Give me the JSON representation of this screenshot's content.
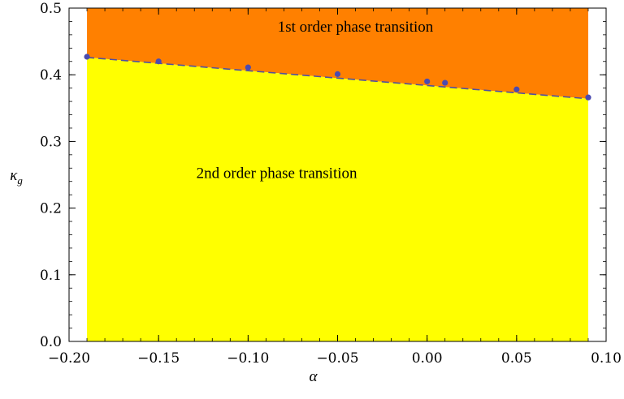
{
  "chart_data": {
    "type": "area",
    "title": "",
    "xlabel": "α",
    "ylabel": "κ",
    "ylabel_subscript": "g",
    "xlim": [
      -0.2,
      0.1
    ],
    "ylim": [
      0.0,
      0.5
    ],
    "x_ticks": [
      -0.2,
      -0.15,
      -0.1,
      -0.05,
      0.0,
      0.05,
      0.1
    ],
    "x_tick_labels": [
      "−0.20",
      "−0.15",
      "−0.10",
      "−0.05",
      "0.00",
      "0.05",
      "0.10"
    ],
    "y_ticks": [
      0.0,
      0.1,
      0.2,
      0.3,
      0.4,
      0.5
    ],
    "y_tick_labels": [
      "0.0",
      "0.1",
      "0.2",
      "0.3",
      "0.4",
      "0.5"
    ],
    "grid": false,
    "fill_x_range": [
      -0.19,
      0.09
    ],
    "boundary_points": {
      "x": [
        -0.19,
        -0.15,
        -0.1,
        -0.05,
        0.0,
        0.01,
        0.05,
        0.09
      ],
      "y": [
        0.427,
        0.42,
        0.411,
        0.401,
        0.39,
        0.388,
        0.378,
        0.366
      ]
    },
    "fit_line": {
      "x": [
        -0.19,
        0.09
      ],
      "y": [
        0.426,
        0.364
      ]
    },
    "regions": [
      {
        "label": "1st order phase transition",
        "color": "#ff8000",
        "label_pos": [
          -0.04,
          0.465
        ]
      },
      {
        "label": "2nd order phase transition",
        "color": "#ffff00",
        "label_pos": [
          -0.084,
          0.245
        ]
      }
    ],
    "colors": {
      "point": "#4b4bb0",
      "line": "#5050a0"
    }
  }
}
